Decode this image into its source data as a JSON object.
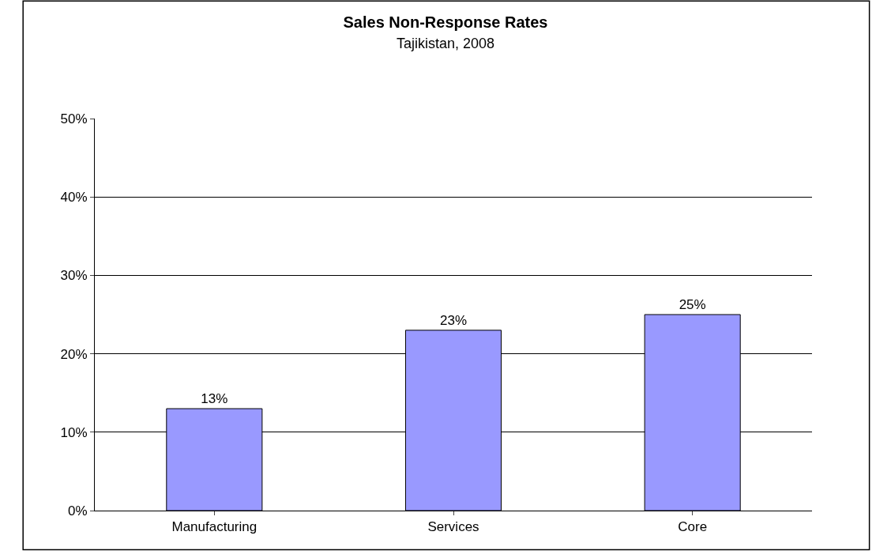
{
  "chart_data": {
    "type": "bar",
    "title": "Sales Non-Response Rates",
    "subtitle": "Tajikistan, 2008",
    "categories": [
      "Manufacturing",
      "Services",
      "Core"
    ],
    "values": [
      13,
      23,
      25
    ],
    "value_labels": [
      "13%",
      "23%",
      "25%"
    ],
    "color": "#9999ff",
    "ylim": [
      0,
      50
    ],
    "yticks": [
      {
        "value": 0,
        "label": "0%"
      },
      {
        "value": 10,
        "label": "10%"
      },
      {
        "value": 20,
        "label": "20%"
      },
      {
        "value": 30,
        "label": "30%"
      },
      {
        "value": 40,
        "label": "40%"
      },
      {
        "value": 50,
        "label": "50%"
      }
    ],
    "grid": "y"
  }
}
